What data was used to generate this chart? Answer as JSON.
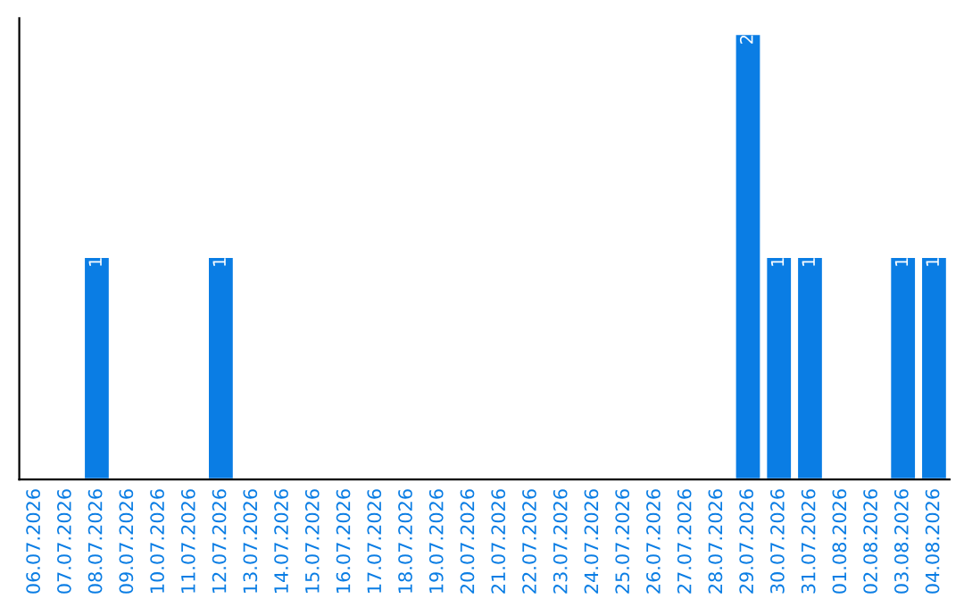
{
  "chart_data": {
    "type": "bar",
    "categories": [
      "06.07.2026",
      "07.07.2026",
      "08.07.2026",
      "09.07.2026",
      "10.07.2026",
      "11.07.2026",
      "12.07.2026",
      "13.07.2026",
      "14.07.2026",
      "15.07.2026",
      "16.07.2026",
      "17.07.2026",
      "18.07.2026",
      "19.07.2026",
      "20.07.2026",
      "21.07.2026",
      "22.07.2026",
      "23.07.2026",
      "24.07.2026",
      "25.07.2026",
      "26.07.2026",
      "27.07.2026",
      "28.07.2026",
      "29.07.2026",
      "30.07.2026",
      "31.07.2026",
      "01.08.2026",
      "02.08.2026",
      "03.08.2026",
      "04.08.2026"
    ],
    "values": [
      null,
      null,
      1,
      null,
      null,
      null,
      1,
      null,
      null,
      null,
      null,
      null,
      null,
      null,
      null,
      null,
      null,
      null,
      null,
      null,
      null,
      null,
      null,
      2,
      1,
      1,
      null,
      null,
      1,
      1
    ],
    "color": "#0a7de4",
    "data_labels": true,
    "tick_labels": "x",
    "grid": false,
    "legend": false
  }
}
